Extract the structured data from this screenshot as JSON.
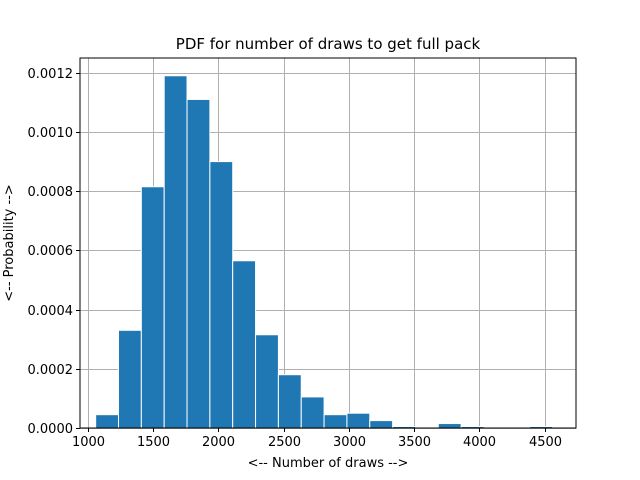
{
  "chart_data": {
    "type": "bar",
    "title": "PDF for number of draws to get full pack",
    "xlabel": "<-- Number of draws -->",
    "ylabel": "<-- Probability -->",
    "xlim": [
      940,
      4740
    ],
    "ylim": [
      0,
      0.00125
    ],
    "xticks": [
      1000,
      1500,
      2000,
      2500,
      3000,
      3500,
      4000,
      4500
    ],
    "yticks": [
      0,
      0.0002,
      0.0004,
      0.0006,
      0.0008,
      0.001,
      0.0012
    ],
    "ytick_labels": [
      "0.0000",
      "0.0002",
      "0.0004",
      "0.0006",
      "0.0008",
      "0.0010",
      "0.0012"
    ],
    "grid": true,
    "bar_color": "#1f77b4",
    "bins": [
      {
        "x0": 1060,
        "x1": 1235,
        "value": 4.5e-05
      },
      {
        "x0": 1235,
        "x1": 1410,
        "value": 0.00033
      },
      {
        "x0": 1410,
        "x1": 1585,
        "value": 0.000815
      },
      {
        "x0": 1585,
        "x1": 1760,
        "value": 0.00119
      },
      {
        "x0": 1760,
        "x1": 1935,
        "value": 0.00111
      },
      {
        "x0": 1935,
        "x1": 2110,
        "value": 0.0009
      },
      {
        "x0": 2110,
        "x1": 2285,
        "value": 0.000565
      },
      {
        "x0": 2285,
        "x1": 2460,
        "value": 0.000315
      },
      {
        "x0": 2460,
        "x1": 2635,
        "value": 0.00018
      },
      {
        "x0": 2635,
        "x1": 2810,
        "value": 0.000105
      },
      {
        "x0": 2810,
        "x1": 2985,
        "value": 4.5e-05
      },
      {
        "x0": 2985,
        "x1": 3160,
        "value": 5e-05
      },
      {
        "x0": 3160,
        "x1": 3335,
        "value": 2.5e-05
      },
      {
        "x0": 3335,
        "x1": 3510,
        "value": 5e-06
      },
      {
        "x0": 3510,
        "x1": 3685,
        "value": 0.0
      },
      {
        "x0": 3685,
        "x1": 3860,
        "value": 1.5e-05
      },
      {
        "x0": 3860,
        "x1": 4035,
        "value": 5e-06
      },
      {
        "x0": 4035,
        "x1": 4210,
        "value": 0.0
      },
      {
        "x0": 4210,
        "x1": 4385,
        "value": 0.0
      },
      {
        "x0": 4385,
        "x1": 4560,
        "value": 5e-06
      }
    ]
  }
}
